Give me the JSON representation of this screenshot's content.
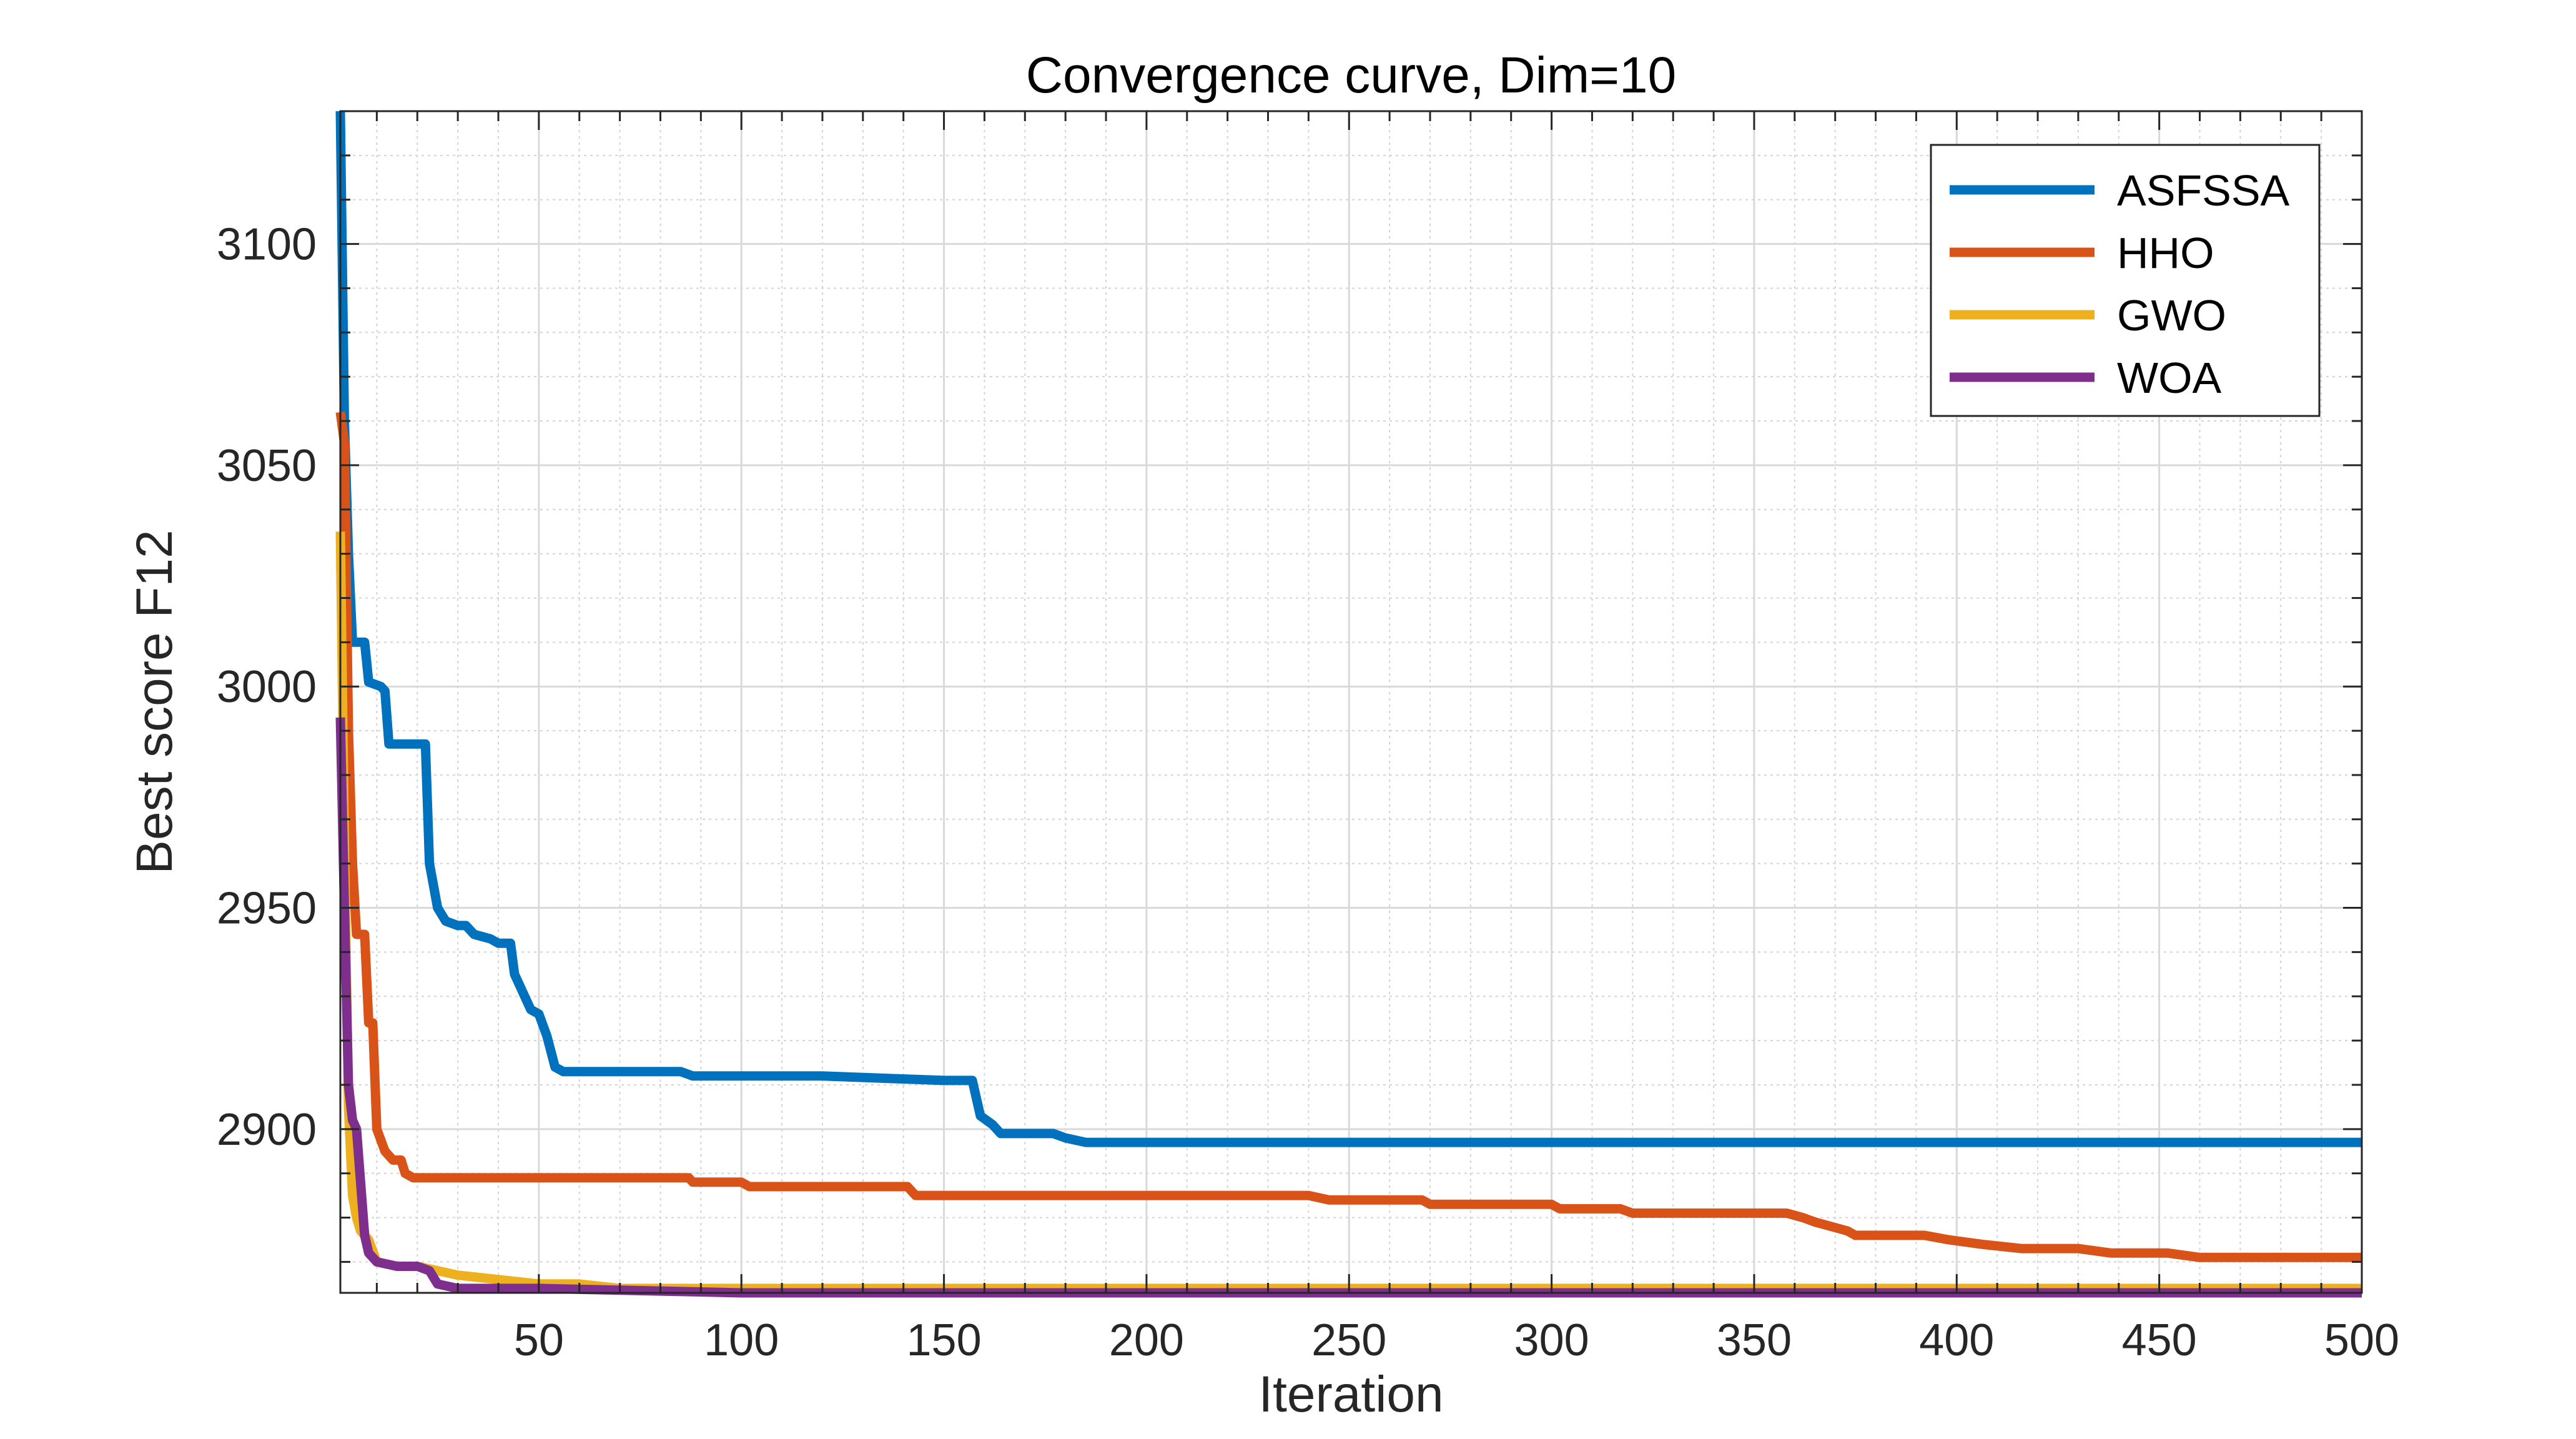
{
  "chart_data": {
    "type": "line",
    "title": "Convergence curve, Dim=10",
    "xlabel": "Iteration",
    "ylabel": "Best score F12",
    "xlim": [
      1,
      500
    ],
    "ylim": [
      2863,
      3130
    ],
    "x_ticks": [
      50,
      100,
      150,
      200,
      250,
      300,
      350,
      400,
      450,
      500
    ],
    "y_ticks": [
      2900,
      2950,
      3000,
      3050,
      3100
    ],
    "x_minor_ticks": [
      10,
      20,
      30,
      40,
      60,
      70,
      80,
      90,
      110,
      120,
      130,
      140,
      160,
      170,
      180,
      190,
      210,
      220,
      230,
      240,
      260,
      270,
      280,
      290,
      310,
      320,
      330,
      340,
      360,
      370,
      380,
      390,
      410,
      420,
      430,
      440,
      460,
      470,
      480,
      490
    ],
    "y_minor_ticks": [
      2870,
      2880,
      2890,
      2910,
      2920,
      2930,
      2940,
      2960,
      2970,
      2980,
      2990,
      3010,
      3020,
      3030,
      3040,
      3060,
      3070,
      3080,
      3090,
      3110,
      3120
    ],
    "grid": true,
    "legend_position": "top-right",
    "series": [
      {
        "name": "ASFSSA",
        "color": "#0072BD",
        "points": [
          [
            1,
            3130
          ],
          [
            2,
            3060
          ],
          [
            3,
            3030
          ],
          [
            4,
            3010
          ],
          [
            7,
            3010
          ],
          [
            8,
            3001
          ],
          [
            11,
            3000
          ],
          [
            12,
            2999
          ],
          [
            13,
            2987
          ],
          [
            17,
            2987
          ],
          [
            22,
            2987
          ],
          [
            23,
            2960
          ],
          [
            25,
            2950
          ],
          [
            27,
            2947
          ],
          [
            30,
            2946
          ],
          [
            32,
            2946
          ],
          [
            34,
            2944
          ],
          [
            38,
            2943
          ],
          [
            40,
            2942
          ],
          [
            43,
            2942
          ],
          [
            44,
            2935
          ],
          [
            46,
            2931
          ],
          [
            48,
            2927
          ],
          [
            50,
            2926
          ],
          [
            52,
            2921
          ],
          [
            54,
            2914
          ],
          [
            56,
            2913
          ],
          [
            72,
            2913
          ],
          [
            85,
            2913
          ],
          [
            88,
            2912
          ],
          [
            120,
            2912
          ],
          [
            150,
            2911
          ],
          [
            157,
            2911
          ],
          [
            159,
            2903
          ],
          [
            162,
            2901
          ],
          [
            164,
            2899
          ],
          [
            177,
            2899
          ],
          [
            180,
            2898
          ],
          [
            185,
            2897
          ],
          [
            200,
            2897
          ],
          [
            300,
            2897
          ],
          [
            400,
            2897
          ],
          [
            500,
            2897
          ]
        ]
      },
      {
        "name": "HHO",
        "color": "#D95319",
        "points": [
          [
            1,
            3062
          ],
          [
            2,
            3055
          ],
          [
            3,
            2990
          ],
          [
            4,
            2960
          ],
          [
            5,
            2944
          ],
          [
            6,
            2944
          ],
          [
            7,
            2944
          ],
          [
            8,
            2924
          ],
          [
            9,
            2924
          ],
          [
            10,
            2900
          ],
          [
            12,
            2895
          ],
          [
            14,
            2893
          ],
          [
            16,
            2893
          ],
          [
            17,
            2890
          ],
          [
            19,
            2889
          ],
          [
            26,
            2889
          ],
          [
            30,
            2889
          ],
          [
            60,
            2889
          ],
          [
            75,
            2889
          ],
          [
            87,
            2889
          ],
          [
            88,
            2888
          ],
          [
            100,
            2888
          ],
          [
            102,
            2887
          ],
          [
            130,
            2887
          ],
          [
            141,
            2887
          ],
          [
            143,
            2885
          ],
          [
            160,
            2885
          ],
          [
            166,
            2885
          ],
          [
            170,
            2885
          ],
          [
            200,
            2885
          ],
          [
            240,
            2885
          ],
          [
            245,
            2884
          ],
          [
            268,
            2884
          ],
          [
            270,
            2883
          ],
          [
            293,
            2883
          ],
          [
            300,
            2883
          ],
          [
            302,
            2882
          ],
          [
            317,
            2882
          ],
          [
            320,
            2881
          ],
          [
            330,
            2881
          ],
          [
            350,
            2881
          ],
          [
            358,
            2881
          ],
          [
            362,
            2880
          ],
          [
            365,
            2879
          ],
          [
            369,
            2878
          ],
          [
            373,
            2877
          ],
          [
            375,
            2876
          ],
          [
            392,
            2876
          ],
          [
            398,
            2875
          ],
          [
            406,
            2874
          ],
          [
            416,
            2873
          ],
          [
            430,
            2873
          ],
          [
            438,
            2872
          ],
          [
            452,
            2872
          ],
          [
            460,
            2871
          ],
          [
            480,
            2871
          ],
          [
            500,
            2871
          ]
        ]
      },
      {
        "name": "GWO",
        "color": "#EDB120",
        "points": [
          [
            1,
            3035
          ],
          [
            2,
            2965
          ],
          [
            3,
            2905
          ],
          [
            4,
            2885
          ],
          [
            5,
            2880
          ],
          [
            6,
            2877
          ],
          [
            8,
            2875
          ],
          [
            10,
            2870
          ],
          [
            15,
            2869
          ],
          [
            20,
            2869
          ],
          [
            25,
            2868
          ],
          [
            30,
            2867
          ],
          [
            40,
            2866
          ],
          [
            50,
            2865
          ],
          [
            60,
            2865
          ],
          [
            70,
            2864
          ],
          [
            100,
            2864
          ],
          [
            200,
            2864
          ],
          [
            300,
            2864
          ],
          [
            400,
            2864
          ],
          [
            500,
            2864
          ]
        ]
      },
      {
        "name": "WOA",
        "color": "#7E2F8E",
        "points": [
          [
            1,
            2993
          ],
          [
            2,
            2950
          ],
          [
            3,
            2910
          ],
          [
            4,
            2902
          ],
          [
            5,
            2900
          ],
          [
            6,
            2888
          ],
          [
            7,
            2876
          ],
          [
            8,
            2872
          ],
          [
            10,
            2870
          ],
          [
            15,
            2869
          ],
          [
            20,
            2869
          ],
          [
            23,
            2868
          ],
          [
            25,
            2865
          ],
          [
            30,
            2864
          ],
          [
            50,
            2864
          ],
          [
            100,
            2863
          ],
          [
            200,
            2863
          ],
          [
            300,
            2863
          ],
          [
            400,
            2863
          ],
          [
            500,
            2863
          ]
        ]
      }
    ]
  }
}
